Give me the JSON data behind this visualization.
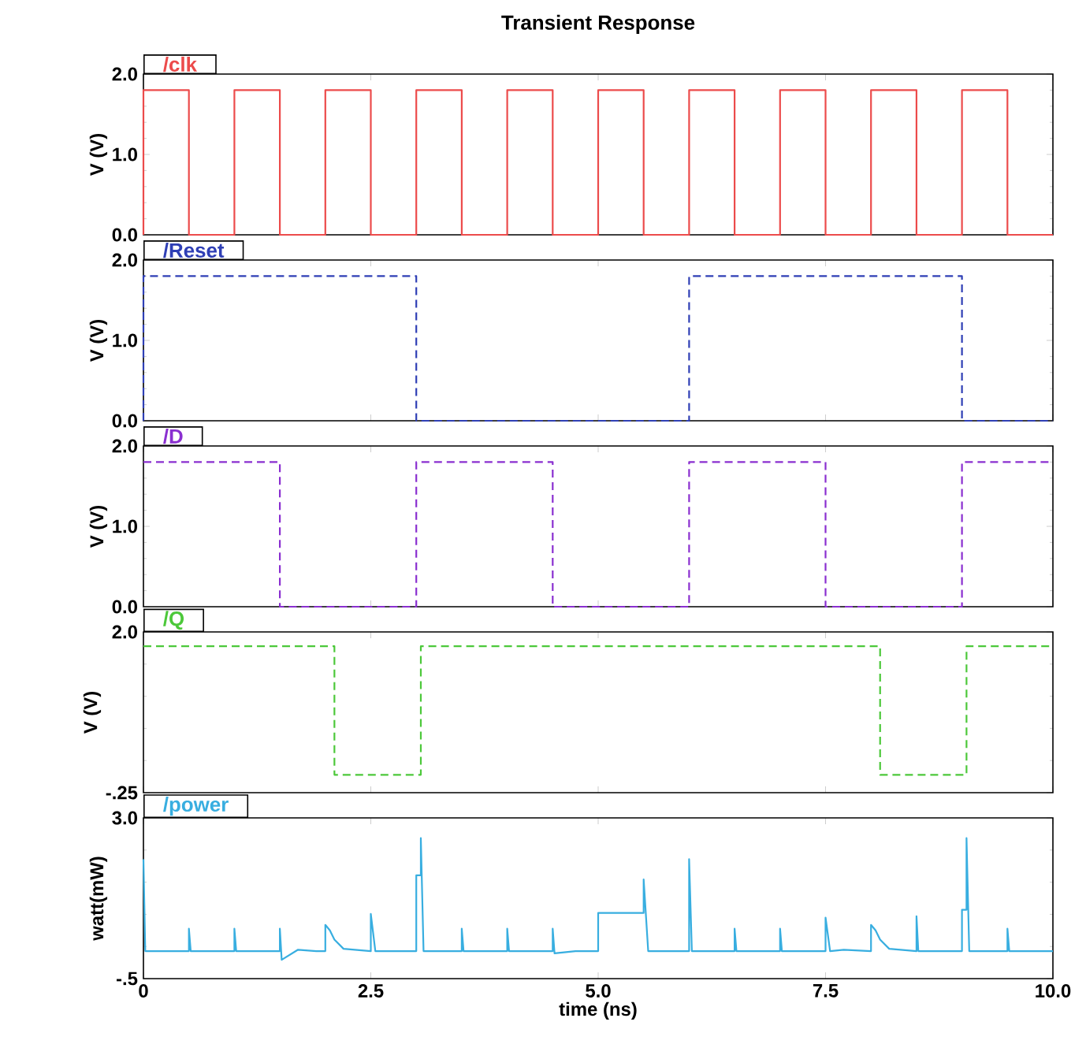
{
  "chart_data": [
    {
      "type": "line",
      "title": "Transient Response",
      "ylabel": "V (V)",
      "xlim": [
        0,
        10
      ],
      "xticks": [
        {
          "value": 0,
          "label": null
        },
        {
          "value": 2.5,
          "label": null
        },
        {
          "value": 5,
          "label": null
        },
        {
          "value": 7.5,
          "label": null
        },
        {
          "value": 10,
          "label": null
        }
      ],
      "ylim": [
        0,
        2.0
      ],
      "yticks": [
        {
          "value": 0,
          "label": "0.0"
        },
        {
          "value": 1,
          "label": "1.0"
        },
        {
          "value": 2,
          "label": "2.0"
        }
      ],
      "tick_labels": "y",
      "line_style": "solid",
      "series": [
        {
          "name": "/clk",
          "color": "#ec4b4b",
          "x": [
            0,
            0,
            0.5,
            0.5,
            1,
            1,
            1.5,
            1.5,
            2,
            2,
            2.5,
            2.5,
            3,
            3,
            3.5,
            3.5,
            4,
            4,
            4.5,
            4.5,
            5,
            5,
            5.5,
            5.5,
            6,
            6,
            6.5,
            6.5,
            7,
            7,
            7.5,
            7.5,
            8,
            8,
            8.5,
            8.5,
            9,
            9,
            9.5,
            9.5,
            10
          ],
          "values": [
            0,
            1.8,
            1.8,
            0,
            0,
            1.8,
            1.8,
            0,
            0,
            1.8,
            1.8,
            0,
            0,
            1.8,
            1.8,
            0,
            0,
            1.8,
            1.8,
            0,
            0,
            1.8,
            1.8,
            0,
            0,
            1.8,
            1.8,
            0,
            0,
            1.8,
            1.8,
            0,
            0,
            1.8,
            1.8,
            0,
            0,
            1.8,
            1.8,
            0,
            0
          ]
        }
      ]
    },
    {
      "type": "line",
      "ylabel": "V (V)",
      "xlim": [
        0,
        10
      ],
      "xticks": [
        {
          "value": 0,
          "label": null
        },
        {
          "value": 2.5,
          "label": null
        },
        {
          "value": 5,
          "label": null
        },
        {
          "value": 7.5,
          "label": null
        },
        {
          "value": 10,
          "label": null
        }
      ],
      "ylim": [
        0,
        2.0
      ],
      "yticks": [
        {
          "value": 0,
          "label": "0.0"
        },
        {
          "value": 1,
          "label": "1.0"
        },
        {
          "value": 2,
          "label": "2.0"
        }
      ],
      "tick_labels": "y",
      "line_style": "dashed",
      "series": [
        {
          "name": "/Reset",
          "color": "#2f3fb5",
          "x": [
            0,
            0,
            3,
            3,
            6,
            6,
            9,
            9,
            10
          ],
          "values": [
            0,
            1.8,
            1.8,
            0,
            0,
            1.8,
            1.8,
            0,
            0
          ]
        }
      ]
    },
    {
      "type": "line",
      "ylabel": "V (V)",
      "xlim": [
        0,
        10
      ],
      "xticks": [
        {
          "value": 0,
          "label": null
        },
        {
          "value": 2.5,
          "label": null
        },
        {
          "value": 5,
          "label": null
        },
        {
          "value": 7.5,
          "label": null
        },
        {
          "value": 10,
          "label": null
        }
      ],
      "ylim": [
        0,
        2.0
      ],
      "yticks": [
        {
          "value": 0,
          "label": "0.0"
        },
        {
          "value": 1,
          "label": "1.0"
        },
        {
          "value": 2,
          "label": "2.0"
        }
      ],
      "tick_labels": "y",
      "line_style": "dashed",
      "series": [
        {
          "name": "/D",
          "color": "#8a2fd0",
          "x": [
            0,
            1.5,
            1.5,
            3,
            3,
            4.5,
            4.5,
            6,
            6,
            7.5,
            7.5,
            9,
            9,
            10
          ],
          "values": [
            1.8,
            1.8,
            0,
            0,
            1.8,
            1.8,
            0,
            0,
            1.8,
            1.8,
            0,
            0,
            1.8,
            1.8
          ]
        }
      ]
    },
    {
      "type": "line",
      "ylabel": "V (V)",
      "xlim": [
        0,
        10
      ],
      "xticks": [
        {
          "value": 0,
          "label": null
        },
        {
          "value": 2.5,
          "label": null
        },
        {
          "value": 5,
          "label": null
        },
        {
          "value": 7.5,
          "label": null
        },
        {
          "value": 10,
          "label": null
        }
      ],
      "ylim": [
        -0.25,
        2.0
      ],
      "yticks": [
        {
          "value": -0.25,
          "label": "-.25"
        },
        {
          "value": 2,
          "label": "2.0"
        }
      ],
      "tick_labels": "y",
      "line_style": "dashed",
      "series": [
        {
          "name": "/Q",
          "color": "#4cc83a",
          "x": [
            0,
            2.1,
            2.1,
            3.05,
            3.05,
            8.1,
            8.1,
            9.05,
            9.05,
            10
          ],
          "values": [
            1.8,
            1.8,
            0,
            0,
            1.8,
            1.8,
            0,
            0,
            1.8,
            1.8
          ]
        }
      ]
    },
    {
      "type": "line",
      "xlabel": "time (ns)",
      "ylabel": "watt(mW)",
      "xlim": [
        0,
        10
      ],
      "xticks": [
        {
          "value": 0,
          "label": "0"
        },
        {
          "value": 2.5,
          "label": "2.5"
        },
        {
          "value": 5,
          "label": "5.0"
        },
        {
          "value": 7.5,
          "label": "7.5"
        },
        {
          "value": 10,
          "label": "10.0"
        }
      ],
      "ylim": [
        -0.5,
        3.0
      ],
      "yticks": [
        {
          "value": -0.5,
          "label": "-.5"
        },
        {
          "value": 3,
          "label": "3.0"
        }
      ],
      "line_style": "solid",
      "series": [
        {
          "name": "/power",
          "color": "#38aee0",
          "x": [
            0,
            0.02,
            0.5,
            0.5,
            0.52,
            1,
            1,
            1.02,
            1.5,
            1.5,
            1.52,
            1.7,
            1.9,
            2,
            2,
            2.05,
            2.1,
            2.2,
            2.5,
            2.5,
            2.55,
            3,
            3,
            3.05,
            3.05,
            3.08,
            3.5,
            3.5,
            3.52,
            4,
            4,
            4.02,
            4.5,
            4.5,
            4.52,
            4.75,
            5,
            5,
            5.5,
            5.5,
            5.55,
            6,
            6,
            6.03,
            6.5,
            6.5,
            6.52,
            7,
            7,
            7.02,
            7.5,
            7.5,
            7.55,
            7.7,
            8,
            8,
            8.05,
            8.1,
            8.2,
            8.5,
            8.5,
            8.52,
            9,
            9,
            9.05,
            9.05,
            9.08,
            9.5,
            9.5,
            9.52,
            10
          ],
          "values": [
            2.1,
            0.1,
            0.1,
            0.59,
            0.1,
            0.1,
            0.59,
            0.1,
            0.1,
            0.59,
            -0.09,
            0.13,
            0.1,
            0.1,
            0.67,
            0.55,
            0.35,
            0.15,
            0.1,
            0.91,
            0.1,
            0.1,
            1.75,
            1.75,
            2.56,
            0.1,
            0.1,
            0.59,
            0.1,
            0.1,
            0.59,
            0.1,
            0.1,
            0.59,
            0.05,
            0.1,
            0.1,
            0.93,
            0.93,
            1.66,
            0.1,
            0.1,
            2.1,
            0.1,
            0.1,
            0.59,
            0.1,
            0.1,
            0.59,
            0.1,
            0.1,
            0.83,
            0.1,
            0.13,
            0.1,
            0.67,
            0.55,
            0.35,
            0.15,
            0.1,
            0.86,
            0.1,
            0.1,
            1.0,
            1.0,
            2.56,
            0.1,
            0.1,
            0.59,
            0.1,
            0.1
          ]
        }
      ]
    }
  ]
}
